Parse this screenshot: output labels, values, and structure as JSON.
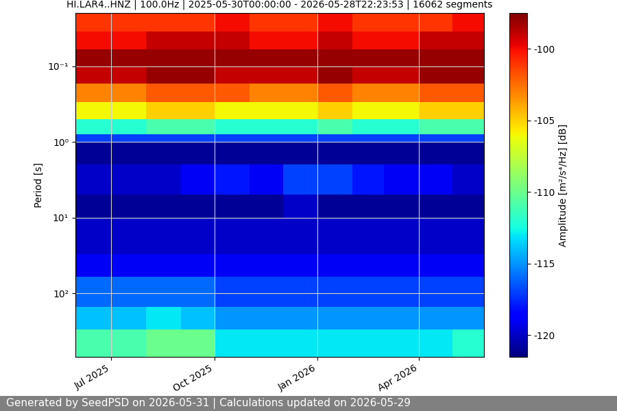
{
  "chart_data": {
    "type": "heatmap",
    "title": "HI.LAR4..HNZ | 100.0Hz | 2025-05-30T00:00:00 - 2026-05-28T22:23:53 | 16062 segments",
    "y_label": "Period [s]",
    "colorbar_label": "Amplitude [m²/s⁴/Hz] [dB]",
    "footer": "Generated by SeedPSD on 2026-05-31 | Calculations updated on 2026-05-29",
    "log": "y",
    "grid": true,
    "xlim": [
      "2025-05-30T00:00:00",
      "2026-05-28T22:23:53"
    ],
    "xticks": [
      {
        "value": "2025-07-01",
        "label": "Jul 2025"
      },
      {
        "value": "2025-10-01",
        "label": "Oct 2025"
      },
      {
        "value": "2026-01-01",
        "label": "Jan 2026"
      },
      {
        "value": "2026-04-01",
        "label": "Apr 2026"
      }
    ],
    "ylim": [
      685,
      0.02
    ],
    "yticks": [
      {
        "value": 0.1,
        "label": "10⁻¹"
      },
      {
        "value": 1,
        "label": "10⁰"
      },
      {
        "value": 10,
        "label": "10¹"
      },
      {
        "value": 100,
        "label": "10²"
      }
    ],
    "time_edges": [
      "2025-05-30T00:00:00",
      "2025-07-01",
      "2025-08-01",
      "2025-09-01",
      "2025-10-01",
      "2025-11-01",
      "2025-12-01",
      "2026-01-01",
      "2026-02-01",
      "2026-03-01",
      "2026-04-01",
      "2026-05-01",
      "2026-05-28T22:23:53"
    ],
    "period_edges": [
      0.02,
      0.035,
      0.06,
      0.1,
      0.17,
      0.3,
      0.5,
      0.8,
      1.0,
      2,
      5,
      10,
      30,
      60,
      150,
      300,
      685
    ],
    "cells": [
      [
        -101,
        -101,
        -101,
        -101,
        -100,
        -101,
        -101,
        -100,
        -101,
        -101,
        -101,
        -100
      ],
      [
        -100,
        -100,
        -99,
        -99,
        -99,
        -100,
        -100,
        -99,
        -100,
        -100,
        -99,
        -99
      ],
      [
        -98,
        -98,
        -98,
        -98,
        -98,
        -98,
        -98,
        -98,
        -98,
        -98,
        -98,
        -98
      ],
      [
        -99,
        -99,
        -98,
        -98,
        -99,
        -99,
        -99,
        -98,
        -99,
        -99,
        -98,
        -98
      ],
      [
        -103,
        -103,
        -102,
        -102,
        -102,
        -103,
        -103,
        -102,
        -103,
        -103,
        -102,
        -102
      ],
      [
        -106,
        -106,
        -105,
        -105,
        -106,
        -106,
        -106,
        -105,
        -106,
        -106,
        -105,
        -105
      ],
      [
        -112,
        -112,
        -111,
        -111,
        -112,
        -112,
        -112,
        -111,
        -112,
        -112,
        -111,
        -111
      ],
      [
        -117,
        -117,
        -117,
        -117,
        -117,
        -117,
        -117,
        -117,
        -117,
        -117,
        -117,
        -117
      ],
      [
        -121,
        -121,
        -121,
        -121,
        -121,
        -121,
        -121,
        -121,
        -121,
        -121,
        -121,
        -121
      ],
      [
        -120,
        -120,
        -120,
        -119,
        -118,
        -119,
        -117,
        -117,
        -118,
        -119,
        -119,
        -120
      ],
      [
        -121,
        -121,
        -121,
        -121,
        -121,
        -121,
        -120,
        -121,
        -121,
        -121,
        -121,
        -121
      ],
      [
        -120,
        -120,
        -120,
        -120,
        -120,
        -120,
        -120,
        -120,
        -120,
        -120,
        -120,
        -120
      ],
      [
        -119,
        -119,
        -119,
        -119,
        -119,
        -119,
        -119,
        -119,
        -119,
        -119,
        -119,
        -119
      ],
      [
        -116,
        -116,
        -116,
        -116,
        -117,
        -117,
        -117,
        -117,
        -117,
        -117,
        -117,
        -117
      ],
      [
        -114,
        -114,
        -113,
        -114,
        -115,
        -115,
        -115,
        -115,
        -115,
        -115,
        -115,
        -115
      ],
      [
        -111,
        -111,
        -110,
        -110,
        -113,
        -113,
        -113,
        -113,
        -113,
        -113,
        -113,
        -112
      ]
    ],
    "color_range": [
      -121.5,
      -97.5
    ],
    "color_ticks": [
      -120,
      -115,
      -110,
      -105,
      -100
    ]
  }
}
